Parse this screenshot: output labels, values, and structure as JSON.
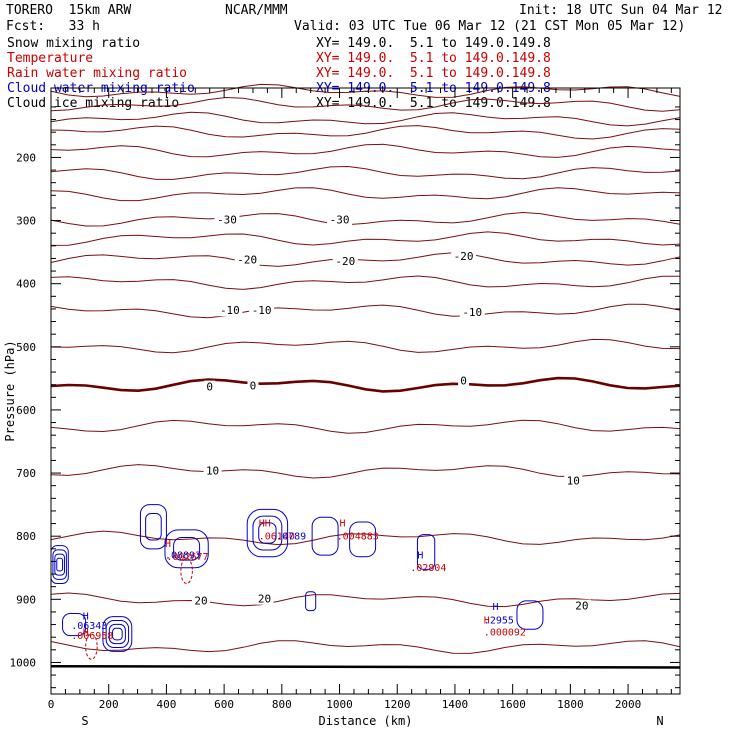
{
  "header": {
    "model": "TORERO  15km ARW",
    "org": "NCAR/MMM",
    "init": "Init: 18 UTC Sun 04 Mar 12",
    "fcst": "Fcst:   33 h",
    "valid": "Valid: 03 UTC Tue 06 Mar 12 (21 CST Mon 05 Mar 12)"
  },
  "fields": [
    {
      "name": "Snow mixing ratio",
      "xy": "XY= 149.0.  5.1 to 149.0.149.8",
      "color": "#000000"
    },
    {
      "name": "Temperature",
      "xy": "XY= 149.0.  5.1 to 149.0.149.8",
      "color": "#cc0000"
    },
    {
      "name": "Rain water mixing ratio",
      "xy": "XY= 149.0.  5.1 to 149.0.149.8",
      "color": "#cc0000"
    },
    {
      "name": "Cloud water mixing ratio",
      "xy": "XY= 149.0.  5.1 to 149.0.149.8",
      "color": "#0000cc"
    },
    {
      "name": "Cloud ice mixing ratio",
      "xy": "XY= 149.0.  5.1 to 149.0.149.8",
      "color": "#000000"
    }
  ],
  "chart_data": {
    "type": "line",
    "subtype": "vertical cross-section contour plot",
    "xlabel": "Distance (km)",
    "ylabel": "Pressure (hPa)",
    "xlim": [
      0,
      2180
    ],
    "ylim": [
      1050,
      90
    ],
    "x_ticks": [
      0,
      200,
      400,
      600,
      800,
      1000,
      1200,
      1400,
      1600,
      1800,
      2000
    ],
    "y_ticks": [
      200,
      300,
      400,
      500,
      600,
      700,
      800,
      900,
      1000
    ],
    "end_labels": {
      "left": "S",
      "right": "N"
    },
    "colors": {
      "temperature": "#7a1010",
      "freezing_line": "#6a0000",
      "cloud_water": "#0000cc",
      "rain_water": "#cc0000",
      "ground": "#000000"
    },
    "temperature_isotherms": [
      {
        "value": -60,
        "pressure": 95
      },
      {
        "value": -55,
        "pressure": 116
      },
      {
        "value": -50,
        "pressure": 139
      },
      {
        "value": -45,
        "pressure": 160
      },
      {
        "value": -40,
        "pressure": 190
      },
      {
        "value": -40,
        "pressure": 225
      },
      {
        "value": -35,
        "pressure": 258
      },
      {
        "value": -30,
        "pressure": 298
      },
      {
        "value": -25,
        "pressure": 329
      },
      {
        "value": -20,
        "pressure": 362
      },
      {
        "value": -15,
        "pressure": 398
      },
      {
        "value": -10,
        "pressure": 443
      },
      {
        "value": -5,
        "pressure": 499
      },
      {
        "value": 0,
        "pressure": 560
      },
      {
        "value": 5,
        "pressure": 626
      },
      {
        "value": 10,
        "pressure": 697
      },
      {
        "value": 15,
        "pressure": 803
      },
      {
        "value": 20,
        "pressure": 901
      },
      {
        "value": 25,
        "pressure": 975
      }
    ],
    "isotherm_labels": [
      {
        "text": "-30",
        "x": 610,
        "y": 298
      },
      {
        "text": "-30",
        "x": 1000,
        "y": 298
      },
      {
        "text": "-20",
        "x": 680,
        "y": 362
      },
      {
        "text": "-20",
        "x": 1020,
        "y": 364
      },
      {
        "text": "-20",
        "x": 1430,
        "y": 356
      },
      {
        "text": "-10",
        "x": 620,
        "y": 442
      },
      {
        "text": "-10",
        "x": 730,
        "y": 442
      },
      {
        "text": "-10",
        "x": 1460,
        "y": 445
      },
      {
        "text": "0",
        "x": 550,
        "y": 563
      },
      {
        "text": "0",
        "x": 700,
        "y": 561
      },
      {
        "text": "0",
        "x": 1430,
        "y": 553
      },
      {
        "text": "10",
        "x": 560,
        "y": 696
      },
      {
        "text": "10",
        "x": 1810,
        "y": 712
      },
      {
        "text": "20",
        "x": 520,
        "y": 902
      },
      {
        "text": "20",
        "x": 740,
        "y": 899
      },
      {
        "text": "20",
        "x": 1840,
        "y": 910
      }
    ],
    "cloud_water_cells": [
      {
        "x": 30,
        "p": 845,
        "w": 60,
        "h": 60,
        "rings": 4
      },
      {
        "x": 355,
        "p": 785,
        "w": 90,
        "h": 70,
        "rings": 2
      },
      {
        "x": 470,
        "p": 820,
        "w": 150,
        "h": 60,
        "rings": 2
      },
      {
        "x": 750,
        "p": 795,
        "w": 140,
        "h": 75,
        "rings": 3
      },
      {
        "x": 950,
        "p": 800,
        "w": 90,
        "h": 60,
        "rings": 1
      },
      {
        "x": 1080,
        "p": 805,
        "w": 90,
        "h": 55,
        "rings": 1
      },
      {
        "x": 1300,
        "p": 825,
        "w": 60,
        "h": 55,
        "rings": 1
      },
      {
        "x": 900,
        "p": 903,
        "w": 35,
        "h": 30,
        "rings": 1
      },
      {
        "x": 80,
        "p": 940,
        "w": 80,
        "h": 35,
        "rings": 1
      },
      {
        "x": 230,
        "p": 955,
        "w": 100,
        "h": 55,
        "rings": 4
      },
      {
        "x": 1660,
        "p": 925,
        "w": 90,
        "h": 45,
        "rings": 1
      }
    ],
    "rain_cells": [
      {
        "x": 470,
        "p": 855,
        "w": 40,
        "h": 40
      },
      {
        "x": 140,
        "p": 975,
        "w": 40,
        "h": 40
      }
    ],
    "maxima_labels": [
      {
        "text": "H",
        "x": 110,
        "y": 932,
        "color": "#0000cc"
      },
      {
        "text": ".06343",
        "x": 70,
        "y": 947,
        "color": "#0000cc"
      },
      {
        "text": "H",
        "x": 110,
        "y": 957,
        "color": "#cc0000"
      },
      {
        "text": ".006958",
        "x": 70,
        "y": 963,
        "color": "#cc0000"
      },
      {
        "text": "H",
        "x": 395,
        "y": 817,
        "color": "#cc0000"
      },
      {
        "text": ".08893",
        "x": 395,
        "y": 835,
        "color": "#0000cc"
      },
      {
        "text": ".002677",
        "x": 400,
        "y": 838,
        "color": "#cc0000"
      },
      {
        "text": "HH",
        "x": 720,
        "y": 785,
        "color": "#cc0000"
      },
      {
        "text": ".06140",
        "x": 720,
        "y": 805,
        "color": "#cc0000"
      },
      {
        "text": ".0789",
        "x": 780,
        "y": 805,
        "color": "#0000cc"
      },
      {
        "text": "H",
        "x": 1000,
        "y": 785,
        "color": "#cc0000"
      },
      {
        "text": ".004883",
        "x": 990,
        "y": 805,
        "color": "#cc0000"
      },
      {
        "text": "H",
        "x": 1270,
        "y": 835,
        "color": "#0000cc"
      },
      {
        "text": ".02804",
        "x": 1245,
        "y": 855,
        "color": "#cc0000"
      },
      {
        "text": "H",
        "x": 1530,
        "y": 917,
        "color": "#0000cc"
      },
      {
        "text": ".2955",
        "x": 1500,
        "y": 938,
        "color": "#0000cc"
      },
      {
        "text": "H",
        "x": 1500,
        "y": 938,
        "color": "#cc0000"
      },
      {
        "text": ".000092",
        "x": 1500,
        "y": 957,
        "color": "#cc0000"
      }
    ]
  }
}
